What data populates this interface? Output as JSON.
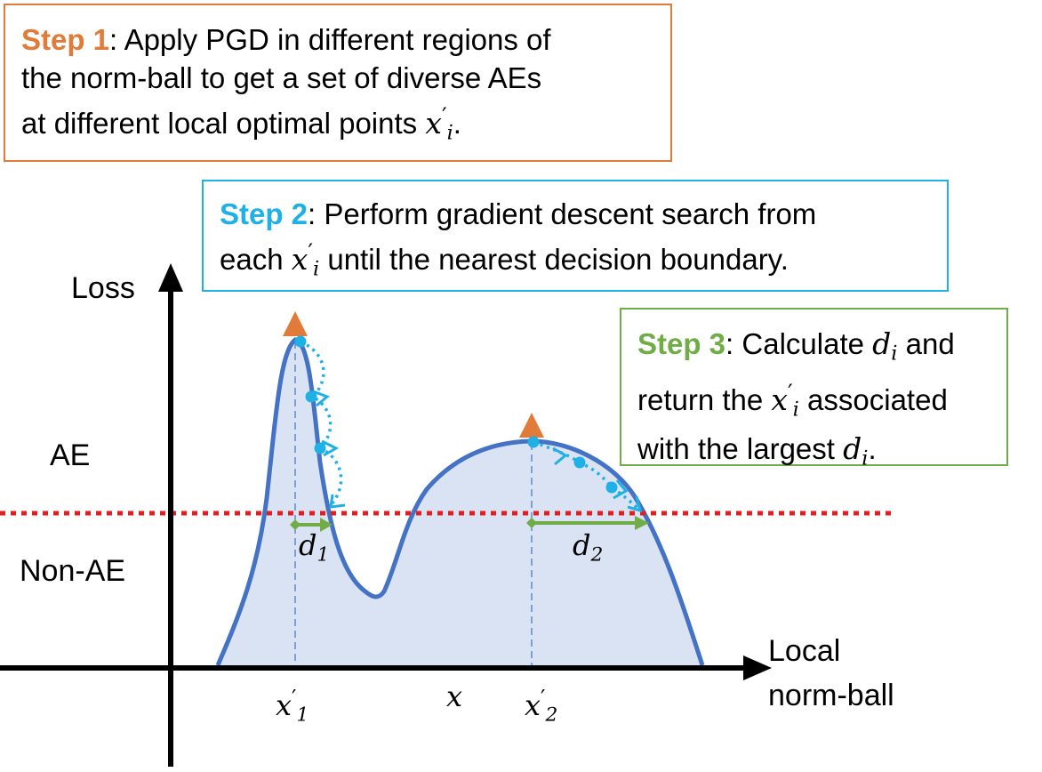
{
  "step1": {
    "title": "Step 1",
    "line1": ": Apply PGD in different regions of",
    "line2": "the norm-ball to get a set of diverse AEs",
    "line3": "at different local optimal points ",
    "var": "x",
    "sub": "i",
    "prime": "′",
    "end": "."
  },
  "step2": {
    "title": "Step 2",
    "line1": ": Perform gradient descent search from",
    "line2a": "each ",
    "var": "x",
    "sub": "i",
    "prime": "′",
    "line2b": " until the nearest decision boundary."
  },
  "step3": {
    "title": "Step 3",
    "line1": ": Calculate ",
    "d": "d",
    "sub": "i",
    "and": " and",
    "line2a": "return the ",
    "var": "x",
    "prime": "′",
    "line2b": " associated",
    "line3a": "with the largest ",
    "end": "."
  },
  "axes": {
    "y_label": "Loss",
    "x_label_1": "Local",
    "x_label_2": "norm-ball",
    "ae_label": "AE",
    "non_ae_label": "Non-AE"
  },
  "math_labels": {
    "d1": "d",
    "d1_sub": "1",
    "d2": "d",
    "d2_sub": "2",
    "x1": "x",
    "x1_sub": "1",
    "x1_prime": "′",
    "x": "x",
    "x2": "x",
    "x2_sub": "2",
    "x2_prime": "′"
  },
  "colors": {
    "step1": "#e07b39",
    "step2": "#1fb0e6",
    "step3": "#70ad47",
    "curve": "#4472c4",
    "fill": "#dae3f3",
    "boundary": "#e02020"
  }
}
